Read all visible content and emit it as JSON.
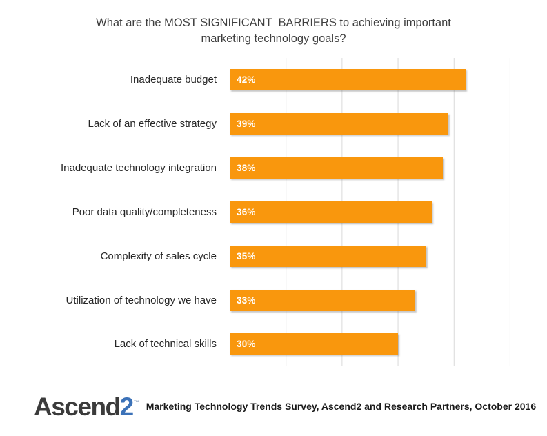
{
  "title": {
    "line1": "What are the MOST SIGNIFICANT  BARRIERS to achieving important",
    "line2": "marketing technology goals?"
  },
  "chart_data": {
    "type": "bar",
    "orientation": "horizontal",
    "title": "What are the MOST SIGNIFICANT BARRIERS to achieving important marketing technology goals?",
    "categories": [
      "Inadequate budget",
      "Lack of an effective strategy",
      "Inadequate technology integration",
      "Poor data quality/completeness",
      "Complexity of sales cycle",
      "Utilization of technology we have",
      "Lack of technical skills"
    ],
    "values": [
      42,
      39,
      38,
      36,
      35,
      33,
      30
    ],
    "value_labels": [
      "42%",
      "39%",
      "38%",
      "36%",
      "35%",
      "33%",
      "30%"
    ],
    "xlim": [
      0,
      50
    ],
    "gridline_step": 10,
    "grid": "vertical",
    "legend": "none",
    "bar_label_position": "inside-left"
  },
  "footer": {
    "logo_text": "Ascend",
    "logo_number": "2",
    "logo_mark": "™",
    "source": "Marketing Technology Trends Survey, Ascend2 and Research Partners, October 2016"
  },
  "colors": {
    "bar": "#F9970D",
    "gridline": "#D9D9D9",
    "title_text": "#3F3F3F",
    "label_text": "#262626",
    "value_text": "#FFFFFF",
    "logo_dark": "#3B3B3B",
    "logo_blue": "#3C72B8",
    "source_text": "#1A1A1A"
  }
}
